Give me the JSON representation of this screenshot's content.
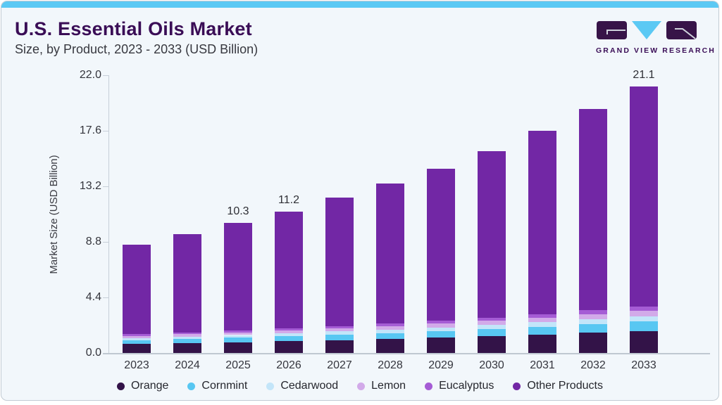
{
  "header": {
    "title": "U.S. Essential Oils Market",
    "subtitle": "Size, by Product, 2023 - 2033 (USD Billion)",
    "logo_text": "GRAND VIEW RESEARCH"
  },
  "colors": {
    "accent_strip": "#5BC9F4",
    "title_text": "#3A0D56",
    "card_background": "#F2F7FB",
    "axis_line": "#C7CFD8"
  },
  "chart_data": {
    "type": "bar",
    "stacked": true,
    "title": "U.S. Essential Oils Market",
    "subtitle": "Size, by Product, 2023 - 2033 (USD Billion)",
    "xlabel": "",
    "ylabel": "Market Size (USD Billion)",
    "ylim": [
      0,
      22
    ],
    "yticks": [
      0,
      4.4,
      8.8,
      13.2,
      17.6,
      22
    ],
    "ytick_labels": [
      "0.0",
      "4.4",
      "8.8",
      "13.2",
      "17.6",
      "22.0"
    ],
    "grid": false,
    "legend_position": "bottom",
    "categories": [
      "2023",
      "2024",
      "2025",
      "2026",
      "2027",
      "2028",
      "2029",
      "2030",
      "2031",
      "2032",
      "2033"
    ],
    "totals": [
      8.6,
      9.4,
      10.3,
      11.2,
      12.3,
      13.4,
      14.6,
      16.0,
      17.6,
      19.3,
      21.1
    ],
    "bar_value_labels": {
      "2025": "10.3",
      "2026": "11.2",
      "2033": "21.1"
    },
    "series": [
      {
        "name": "Orange",
        "color": "#331348",
        "values": [
          0.71,
          0.78,
          0.85,
          0.93,
          1.02,
          1.11,
          1.21,
          1.33,
          1.46,
          1.6,
          1.75
        ]
      },
      {
        "name": "Cornmint",
        "color": "#58C7F2",
        "values": [
          0.3,
          0.33,
          0.36,
          0.39,
          0.43,
          0.47,
          0.51,
          0.56,
          0.62,
          0.68,
          0.74
        ]
      },
      {
        "name": "Cedarwood",
        "color": "#C3E5F9",
        "values": [
          0.17,
          0.19,
          0.21,
          0.22,
          0.25,
          0.27,
          0.29,
          0.32,
          0.35,
          0.39,
          0.42
        ]
      },
      {
        "name": "Lemon",
        "color": "#D2AAE9",
        "values": [
          0.18,
          0.2,
          0.22,
          0.24,
          0.26,
          0.28,
          0.31,
          0.34,
          0.37,
          0.41,
          0.44
        ]
      },
      {
        "name": "Eucalyptus",
        "color": "#A55CD5",
        "values": [
          0.13,
          0.14,
          0.15,
          0.17,
          0.18,
          0.2,
          0.22,
          0.24,
          0.26,
          0.29,
          0.32
        ]
      },
      {
        "name": "Other Products",
        "color": "#7227A5",
        "values": [
          7.11,
          7.76,
          8.51,
          9.25,
          10.16,
          11.07,
          12.06,
          13.21,
          14.54,
          15.93,
          17.43
        ]
      }
    ]
  }
}
